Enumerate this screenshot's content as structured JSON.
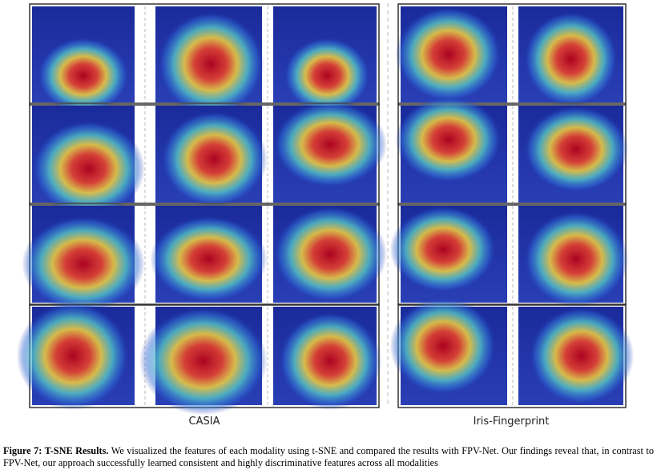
{
  "figure": {
    "panels": [
      {
        "label": "CASIA"
      },
      {
        "label": "Iris-Fingerprint"
      }
    ],
    "caption": {
      "label": "Figure 7: T-SNE Results.",
      "text": "We visualized the features of each modality using t-SNE and compared the results with FPV-Net. Our findings reveal that, in contrast to FPV-Net, our approach successfully learned consistent and highly discriminative features across all modalities"
    }
  }
}
